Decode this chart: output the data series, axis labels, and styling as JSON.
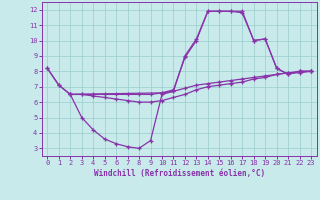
{
  "xlabel": "Windchill (Refroidissement éolien,°C)",
  "bg_color": "#c8eaea",
  "line_color": "#8833aa",
  "grid_color": "#99cccc",
  "xlim": [
    -0.5,
    23.5
  ],
  "ylim": [
    2.5,
    12.5
  ],
  "xticks": [
    0,
    1,
    2,
    3,
    4,
    5,
    6,
    7,
    8,
    9,
    10,
    11,
    12,
    13,
    14,
    15,
    16,
    17,
    18,
    19,
    20,
    21,
    22,
    23
  ],
  "yticks": [
    3,
    4,
    5,
    6,
    7,
    8,
    9,
    10,
    11,
    12
  ],
  "line1_x": [
    0,
    1,
    2,
    3,
    4,
    5,
    6,
    7,
    8,
    9,
    10,
    11,
    12,
    13,
    14,
    15,
    16,
    17,
    18,
    19,
    20,
    21,
    22,
    23
  ],
  "line1_y": [
    8.2,
    7.1,
    6.5,
    6.5,
    6.5,
    6.5,
    6.5,
    6.5,
    6.5,
    6.5,
    6.6,
    6.7,
    6.9,
    7.1,
    7.2,
    7.3,
    7.4,
    7.5,
    7.6,
    7.7,
    7.8,
    7.9,
    8.0,
    8.0
  ],
  "line2_x": [
    0,
    1,
    2,
    10,
    11,
    12,
    13,
    14,
    15,
    16,
    17,
    18,
    19,
    20,
    21,
    22,
    23
  ],
  "line2_y": [
    8.2,
    7.1,
    6.5,
    6.6,
    6.8,
    8.9,
    10.0,
    11.9,
    11.9,
    11.9,
    11.9,
    10.0,
    10.1,
    8.2,
    7.8,
    8.0,
    8.0
  ],
  "line3_x": [
    2,
    3,
    4,
    5,
    6,
    7,
    8,
    9,
    10,
    11,
    12,
    13,
    14,
    15,
    16,
    17,
    18,
    19,
    20,
    21,
    22,
    23
  ],
  "line3_y": [
    6.5,
    5.0,
    4.2,
    3.6,
    3.3,
    3.1,
    3.0,
    3.5,
    6.5,
    6.7,
    9.0,
    10.1,
    11.9,
    11.9,
    11.9,
    11.8,
    10.0,
    10.1,
    8.2,
    7.8,
    8.0,
    8.0
  ],
  "line4_x": [
    2,
    3,
    4,
    5,
    6,
    7,
    8,
    9,
    10,
    11,
    12,
    13,
    14,
    15,
    16,
    17,
    18,
    19,
    20,
    21,
    22,
    23
  ],
  "line4_y": [
    6.5,
    6.5,
    6.4,
    6.3,
    6.2,
    6.1,
    6.0,
    6.0,
    6.1,
    6.3,
    6.5,
    6.8,
    7.0,
    7.1,
    7.2,
    7.3,
    7.5,
    7.6,
    7.8,
    7.9,
    7.9,
    8.0
  ]
}
